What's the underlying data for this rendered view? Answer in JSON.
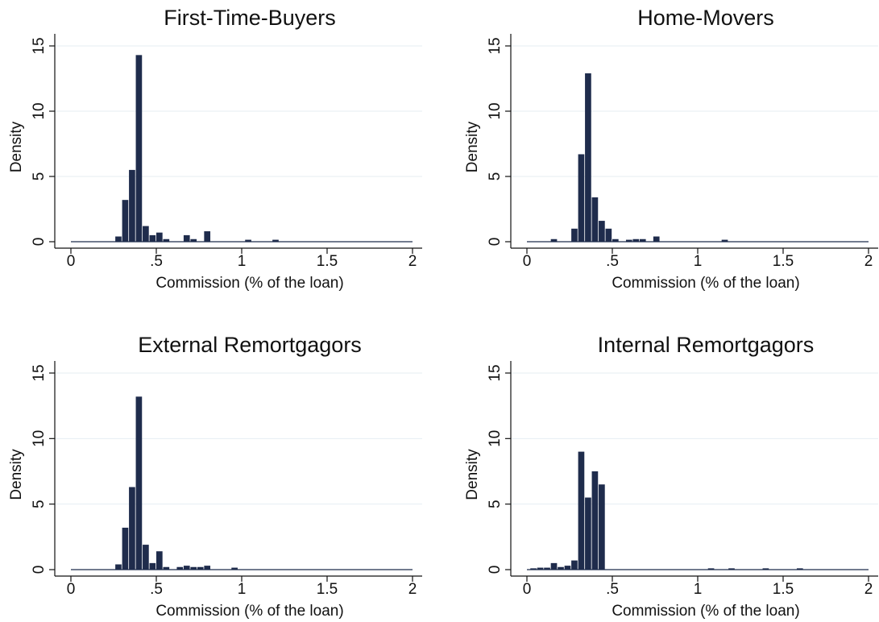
{
  "chart_data": [
    {
      "type": "bar",
      "title": "First-Time-Buyers",
      "xlabel": "Commission (% of the loan)",
      "ylabel": "Density",
      "xlim": [
        0,
        2
      ],
      "ylim": [
        0,
        15
      ],
      "xticks": [
        "0",
        ".5",
        "1",
        "1.5",
        "2"
      ],
      "yticks": [
        "0",
        "5",
        "10",
        "15"
      ],
      "grid": true,
      "color": "#1f2c4c",
      "bin_width": 0.04,
      "bins": [
        {
          "x": 0.28,
          "y": 0.4
        },
        {
          "x": 0.32,
          "y": 3.2
        },
        {
          "x": 0.36,
          "y": 5.5
        },
        {
          "x": 0.4,
          "y": 14.3
        },
        {
          "x": 0.44,
          "y": 1.2
        },
        {
          "x": 0.48,
          "y": 0.5
        },
        {
          "x": 0.52,
          "y": 0.7
        },
        {
          "x": 0.56,
          "y": 0.2
        },
        {
          "x": 0.68,
          "y": 0.5
        },
        {
          "x": 0.72,
          "y": 0.2
        },
        {
          "x": 0.8,
          "y": 0.8
        },
        {
          "x": 1.04,
          "y": 0.15
        },
        {
          "x": 1.2,
          "y": 0.15
        }
      ]
    },
    {
      "type": "bar",
      "title": "Home-Movers",
      "xlabel": "Commission (% of the loan)",
      "ylabel": "Density",
      "xlim": [
        0,
        2
      ],
      "ylim": [
        0,
        15
      ],
      "xticks": [
        "0",
        ".5",
        "1",
        "1.5",
        "2"
      ],
      "yticks": [
        "0",
        "5",
        "10",
        "15"
      ],
      "grid": true,
      "color": "#1f2c4c",
      "bin_width": 0.04,
      "bins": [
        {
          "x": 0.16,
          "y": 0.2
        },
        {
          "x": 0.28,
          "y": 1.0
        },
        {
          "x": 0.32,
          "y": 6.7
        },
        {
          "x": 0.36,
          "y": 12.9
        },
        {
          "x": 0.4,
          "y": 3.4
        },
        {
          "x": 0.44,
          "y": 1.6
        },
        {
          "x": 0.48,
          "y": 1.0
        },
        {
          "x": 0.52,
          "y": 0.2
        },
        {
          "x": 0.6,
          "y": 0.15
        },
        {
          "x": 0.64,
          "y": 0.2
        },
        {
          "x": 0.68,
          "y": 0.2
        },
        {
          "x": 0.76,
          "y": 0.4
        },
        {
          "x": 1.16,
          "y": 0.15
        }
      ]
    },
    {
      "type": "bar",
      "title": "External Remortgagors",
      "xlabel": "Commission (% of the loan)",
      "ylabel": "Density",
      "xlim": [
        0,
        2
      ],
      "ylim": [
        0,
        15
      ],
      "xticks": [
        "0",
        ".5",
        "1",
        "1.5",
        "2"
      ],
      "yticks": [
        "0",
        "5",
        "10",
        "15"
      ],
      "grid": true,
      "color": "#1f2c4c",
      "bin_width": 0.04,
      "bins": [
        {
          "x": 0.28,
          "y": 0.4
        },
        {
          "x": 0.32,
          "y": 3.2
        },
        {
          "x": 0.36,
          "y": 6.3
        },
        {
          "x": 0.4,
          "y": 13.2
        },
        {
          "x": 0.44,
          "y": 1.9
        },
        {
          "x": 0.48,
          "y": 0.5
        },
        {
          "x": 0.52,
          "y": 1.4
        },
        {
          "x": 0.56,
          "y": 0.2
        },
        {
          "x": 0.64,
          "y": 0.2
        },
        {
          "x": 0.68,
          "y": 0.3
        },
        {
          "x": 0.72,
          "y": 0.2
        },
        {
          "x": 0.76,
          "y": 0.2
        },
        {
          "x": 0.8,
          "y": 0.3
        },
        {
          "x": 0.96,
          "y": 0.15
        }
      ]
    },
    {
      "type": "bar",
      "title": "Internal Remortgagors",
      "xlabel": "Commission (% of the loan)",
      "ylabel": "Density",
      "xlim": [
        0,
        2
      ],
      "ylim": [
        0,
        15
      ],
      "xticks": [
        "0",
        ".5",
        "1",
        "1.5",
        "2"
      ],
      "yticks": [
        "0",
        "5",
        "10",
        "15"
      ],
      "grid": true,
      "color": "#1f2c4c",
      "bin_width": 0.04,
      "bins": [
        {
          "x": 0.04,
          "y": 0.1
        },
        {
          "x": 0.08,
          "y": 0.15
        },
        {
          "x": 0.12,
          "y": 0.15
        },
        {
          "x": 0.16,
          "y": 0.5
        },
        {
          "x": 0.2,
          "y": 0.2
        },
        {
          "x": 0.24,
          "y": 0.3
        },
        {
          "x": 0.28,
          "y": 0.7
        },
        {
          "x": 0.32,
          "y": 9.0
        },
        {
          "x": 0.36,
          "y": 5.5
        },
        {
          "x": 0.4,
          "y": 7.5
        },
        {
          "x": 0.44,
          "y": 6.5
        },
        {
          "x": 1.08,
          "y": 0.1
        },
        {
          "x": 1.2,
          "y": 0.1
        },
        {
          "x": 1.4,
          "y": 0.1
        },
        {
          "x": 1.6,
          "y": 0.1
        }
      ]
    }
  ]
}
